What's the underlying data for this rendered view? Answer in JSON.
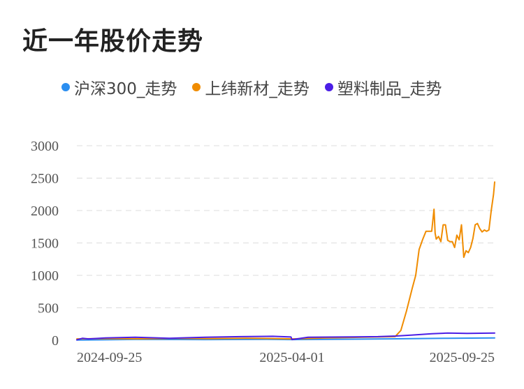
{
  "title": "近一年股价走势",
  "chart_data": {
    "type": "line",
    "ylim": [
      0,
      3000
    ],
    "yticks": [
      "3000",
      "2500",
      "2000",
      "1500",
      "1000",
      "500",
      "0"
    ],
    "xticks": [
      "2024-09-25",
      "2025-04-01",
      "2025-09-25"
    ],
    "grid": true,
    "legend_position": "top",
    "series": [
      {
        "name": "沪深300_走势",
        "color": "#2b8ef0",
        "x": [
          "2024-09-25",
          "2024-11-15",
          "2025-01-15",
          "2025-03-10",
          "2025-04-01",
          "2025-05-15",
          "2025-07-01",
          "2025-08-15",
          "2025-09-25"
        ],
        "values": [
          2,
          12,
          10,
          14,
          10,
          15,
          22,
          30,
          35
        ]
      },
      {
        "name": "上纬新材_走势",
        "color": "#f08c00",
        "x": [
          "2024-09-25",
          "2024-10-20",
          "2024-11-20",
          "2024-12-20",
          "2025-01-20",
          "2025-02-20",
          "2025-03-20",
          "2025-04-01",
          "2025-05-01",
          "2025-06-01",
          "2025-06-30",
          "2025-07-05",
          "2025-07-10",
          "2025-07-15",
          "2025-07-18",
          "2025-07-21",
          "2025-07-24",
          "2025-07-27",
          "2025-07-30",
          "2025-08-01",
          "2025-08-03",
          "2025-08-04",
          "2025-08-05",
          "2025-08-07",
          "2025-08-09",
          "2025-08-11",
          "2025-08-13",
          "2025-08-15",
          "2025-08-17",
          "2025-08-19",
          "2025-08-21",
          "2025-08-23",
          "2025-08-25",
          "2025-08-27",
          "2025-08-29",
          "2025-08-31",
          "2025-09-02",
          "2025-09-04",
          "2025-09-06",
          "2025-09-08",
          "2025-09-10",
          "2025-09-12",
          "2025-09-14",
          "2025-09-16",
          "2025-09-18",
          "2025-09-20",
          "2025-09-22",
          "2025-09-24",
          "2025-09-25"
        ],
        "values": [
          20,
          25,
          22,
          28,
          25,
          30,
          25,
          20,
          35,
          45,
          55,
          150,
          450,
          800,
          1000,
          1400,
          1550,
          1680,
          1680,
          1680,
          2020,
          1650,
          1560,
          1600,
          1520,
          1780,
          1780,
          1540,
          1520,
          1520,
          1430,
          1620,
          1550,
          1780,
          1280,
          1380,
          1350,
          1430,
          1570,
          1780,
          1800,
          1720,
          1670,
          1700,
          1680,
          1700,
          2000,
          2250,
          2440
        ]
      },
      {
        "name": "塑料制品_走势",
        "color": "#4b1ee6",
        "x": [
          "2024-09-25",
          "2024-09-30",
          "2024-10-05",
          "2024-10-20",
          "2024-11-15",
          "2024-12-15",
          "2025-01-15",
          "2025-02-15",
          "2025-03-15",
          "2025-03-31",
          "2025-04-01",
          "2025-04-15",
          "2025-05-15",
          "2025-06-15",
          "2025-07-01",
          "2025-07-15",
          "2025-08-01",
          "2025-08-15",
          "2025-09-01",
          "2025-09-25"
        ],
        "values": [
          5,
          30,
          20,
          35,
          45,
          30,
          45,
          55,
          60,
          50,
          10,
          45,
          50,
          55,
          65,
          80,
          100,
          110,
          105,
          110
        ]
      }
    ]
  }
}
